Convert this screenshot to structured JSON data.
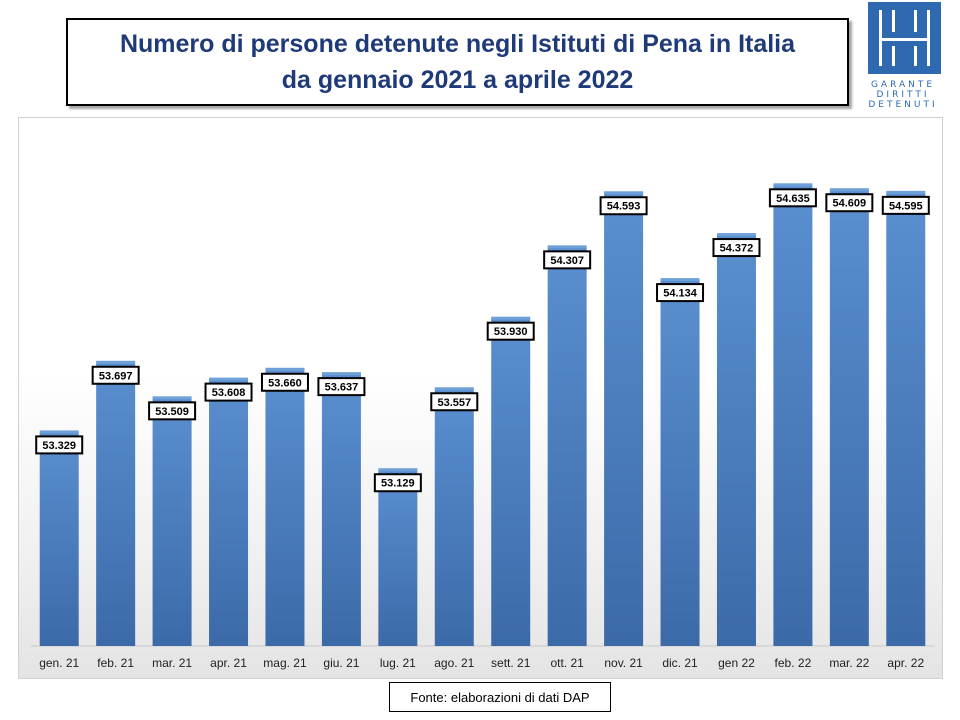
{
  "header": {
    "title_line1": "Numero di persone detenute negli Istituti di Pena in Italia",
    "title_line2": "da gennaio 2021 a aprile 2022"
  },
  "logo": {
    "lines": [
      "GARANTE",
      "DIRITTI",
      "DETENUTI"
    ]
  },
  "colors": {
    "bar": "#4a7fc1",
    "title": "#1f3a78",
    "logo": "#2f6ab0"
  },
  "source": "Fonte: elaborazioni di dati DAP",
  "chart_data": {
    "type": "bar",
    "title": "Numero di persone detenute negli Istituti di Pena in Italia da gennaio 2021 a aprile 2022",
    "categories": [
      "gen. 21",
      "feb. 21",
      "mar. 21",
      "apr. 21",
      "mag. 21",
      "giu. 21",
      "lug. 21",
      "ago. 21",
      "sett. 21",
      "ott. 21",
      "nov. 21",
      "dic. 21",
      "gen 22",
      "feb. 22",
      "mar. 22",
      "apr. 22"
    ],
    "values": [
      53329,
      53697,
      53509,
      53608,
      53660,
      53637,
      53129,
      53557,
      53930,
      54307,
      54593,
      54134,
      54372,
      54635,
      54609,
      54595
    ],
    "value_labels": [
      "53.329",
      "53.697",
      "53.509",
      "53.608",
      "53.660",
      "53.637",
      "53.129",
      "53.557",
      "53.930",
      "54.307",
      "54.593",
      "54.134",
      "54.372",
      "54.635",
      "54.609",
      "54.595"
    ],
    "xlabel": "",
    "ylabel": "",
    "ylim": [
      52200,
      54700
    ],
    "grid": false,
    "legend": "none"
  }
}
